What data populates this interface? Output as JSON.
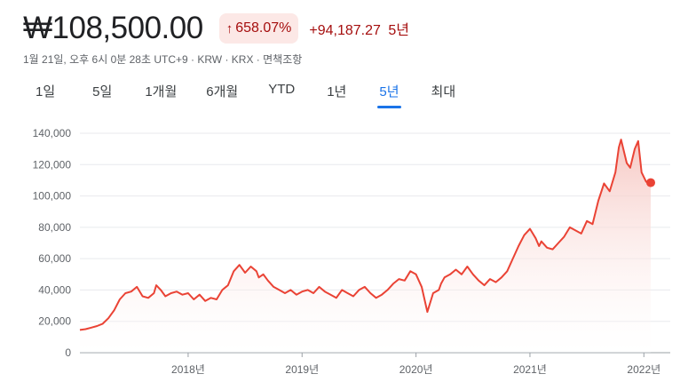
{
  "header": {
    "price": "₩108,500.00",
    "percent_change": "658.07%",
    "percent_arrow": "arrow-up-icon",
    "absolute_change": "+94,187.27",
    "period": "5년"
  },
  "meta": {
    "text": "1월 21일, 오후 6시 0분 28초 UTC+9 · KRW · KRX · 면책조항"
  },
  "tabs": [
    {
      "label": "1일"
    },
    {
      "label": "5일"
    },
    {
      "label": "1개월"
    },
    {
      "label": "6개월"
    },
    {
      "label": "YTD"
    },
    {
      "label": "1년"
    },
    {
      "label": "5년"
    },
    {
      "label": "최대"
    }
  ],
  "active_tab": "5년",
  "colors": {
    "line": "#ea4335",
    "fill_top": "#f6c6c1",
    "gridline": "#e8eaed",
    "accent": "#1a73e8",
    "negative_text": "#a50e0e"
  },
  "chart_data": {
    "type": "area",
    "title": "",
    "xlabel": "",
    "ylabel": "",
    "ylim": [
      0,
      140000
    ],
    "yticks": [
      0,
      20000,
      40000,
      60000,
      80000,
      100000,
      120000,
      140000
    ],
    "ytick_labels": [
      "0",
      "20,000",
      "40,000",
      "60,000",
      "80,000",
      "100,000",
      "120,000",
      "140,000"
    ],
    "xlim": [
      2017.05,
      2022.06
    ],
    "xticks": [
      2018,
      2019,
      2020,
      2021,
      2022
    ],
    "xtick_labels": [
      "2018년",
      "2019년",
      "2020년",
      "2021년",
      "2022년"
    ],
    "grid": true,
    "series": [
      {
        "x": [
          2017.05,
          2017.1,
          2017.15,
          2017.2,
          2017.25,
          2017.3,
          2017.35,
          2017.4,
          2017.45,
          2017.5,
          2017.55,
          2017.6,
          2017.65,
          2017.7,
          2017.72,
          2017.76,
          2017.8,
          2017.85,
          2017.9,
          2017.95,
          2018.0,
          2018.05,
          2018.1,
          2018.15,
          2018.2,
          2018.25,
          2018.3,
          2018.35,
          2018.4,
          2018.45,
          2018.5,
          2018.55,
          2018.6,
          2018.62,
          2018.66,
          2018.7,
          2018.75,
          2018.8,
          2018.85,
          2018.9,
          2018.95,
          2019.0,
          2019.05,
          2019.1,
          2019.15,
          2019.2,
          2019.25,
          2019.3,
          2019.35,
          2019.4,
          2019.45,
          2019.5,
          2019.55,
          2019.6,
          2019.65,
          2019.7,
          2019.75,
          2019.8,
          2019.85,
          2019.9,
          2019.95,
          2020.0,
          2020.05,
          2020.1,
          2020.15,
          2020.2,
          2020.22,
          2020.25,
          2020.3,
          2020.35,
          2020.4,
          2020.45,
          2020.5,
          2020.55,
          2020.6,
          2020.65,
          2020.7,
          2020.75,
          2020.8,
          2020.85,
          2020.9,
          2020.95,
          2021.0,
          2021.05,
          2021.08,
          2021.1,
          2021.15,
          2021.2,
          2021.25,
          2021.3,
          2021.35,
          2021.4,
          2021.45,
          2021.5,
          2021.55,
          2021.6,
          2021.65,
          2021.7,
          2021.75,
          2021.78,
          2021.8,
          2021.85,
          2021.88,
          2021.92,
          2021.95,
          2021.98,
          2022.02,
          2022.06
        ],
        "values": [
          14500,
          15000,
          16000,
          17000,
          18500,
          22000,
          27000,
          34000,
          38000,
          39000,
          42000,
          36000,
          35000,
          38000,
          43000,
          40000,
          36000,
          38000,
          39000,
          37000,
          38000,
          34000,
          37000,
          33000,
          35000,
          34000,
          40000,
          43000,
          52000,
          56000,
          51000,
          55000,
          52000,
          48000,
          50000,
          46000,
          42000,
          40000,
          38000,
          40000,
          37000,
          39000,
          40000,
          38000,
          42000,
          39000,
          37000,
          35000,
          40000,
          38000,
          36000,
          40000,
          42000,
          38000,
          35000,
          37000,
          40000,
          44000,
          47000,
          46000,
          52000,
          50000,
          42000,
          26000,
          38000,
          40000,
          44000,
          48000,
          50000,
          53000,
          50000,
          55000,
          50000,
          46000,
          43000,
          47000,
          45000,
          48000,
          52000,
          60000,
          68000,
          75000,
          79000,
          73000,
          68000,
          71000,
          67000,
          66000,
          70000,
          74000,
          80000,
          78000,
          76000,
          84000,
          82000,
          97000,
          108000,
          103000,
          115000,
          131000,
          136000,
          121000,
          118000,
          130000,
          135000,
          115000,
          109000,
          108500
        ]
      }
    ]
  }
}
